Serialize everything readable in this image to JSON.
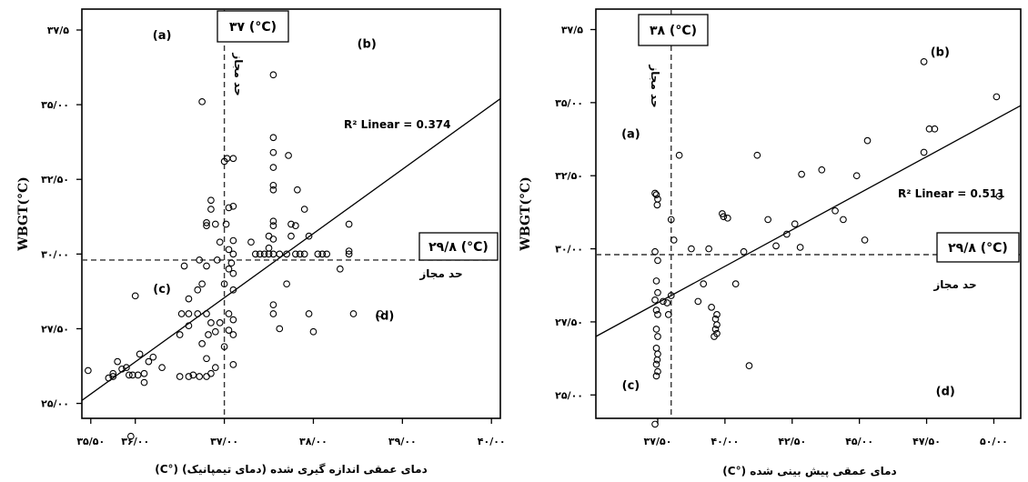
{
  "chart_data": [
    {
      "type": "scatter",
      "panel": "left",
      "xlabel": "دمای عمقی اندازه گیری شده (دمای تیمپانیک) (°C)",
      "ylabel": "WBGT(°C)",
      "xlim": [
        35.4,
        40.1
      ],
      "ylim": [
        24.5,
        38.2
      ],
      "x_ticks": [
        {
          "v": 35.5,
          "label": "۳۵/۵۰"
        },
        {
          "v": 36.0,
          "label": "۳۶/۰۰"
        },
        {
          "v": 37.0,
          "label": "۳۷/۰۰"
        },
        {
          "v": 38.0,
          "label": "۳۸/۰۰"
        },
        {
          "v": 39.0,
          "label": "۳۹/۰۰"
        },
        {
          "v": 40.0,
          "label": "۴۰/۰۰"
        }
      ],
      "y_ticks": [
        {
          "v": 25.0,
          "label": "۲۵/۰۰"
        },
        {
          "v": 27.5,
          "label": "۲۷/۵۰"
        },
        {
          "v": 30.0,
          "label": "۳۰/۰۰"
        },
        {
          "v": 32.5,
          "label": "۳۲/۵۰"
        },
        {
          "v": 35.0,
          "label": "۳۵/۰۰"
        },
        {
          "v": 37.5,
          "label": "۳۷/۵"
        }
      ],
      "vline": {
        "x": 37.0,
        "label": "۳۷ (°C)",
        "note": "حد مجاز"
      },
      "hline": {
        "y": 29.8,
        "label": "۲۹/۸ (°C)",
        "note": "حد مجاز"
      },
      "fit": {
        "label": "R² Linear = 0.374",
        "x0": 35.4,
        "y0": 25.1,
        "x1": 40.1,
        "y1": 35.2
      },
      "quadrants": [
        {
          "label": "(a)",
          "x": 36.3,
          "y": 37.2
        },
        {
          "label": "(b)",
          "x": 38.6,
          "y": 36.9
        },
        {
          "label": "(c)",
          "x": 36.3,
          "y": 28.7
        },
        {
          "label": "(d)",
          "x": 38.8,
          "y": 27.8
        }
      ],
      "points": [
        [
          35.47,
          26.1
        ],
        [
          35.7,
          25.85
        ],
        [
          35.75,
          25.9
        ],
        [
          35.85,
          26.15
        ],
        [
          35.75,
          26.0
        ],
        [
          35.8,
          26.4
        ],
        [
          35.9,
          26.2
        ],
        [
          35.93,
          25.95
        ],
        [
          35.97,
          25.95
        ],
        [
          36.03,
          25.95
        ],
        [
          36.1,
          26.0
        ],
        [
          36.1,
          25.7
        ],
        [
          36.05,
          26.65
        ],
        [
          36.15,
          26.4
        ],
        [
          36.2,
          26.55
        ],
        [
          36.3,
          26.2
        ],
        [
          35.95,
          23.9
        ],
        [
          36.0,
          28.6
        ],
        [
          36.5,
          25.9
        ],
        [
          36.6,
          25.9
        ],
        [
          36.65,
          25.95
        ],
        [
          36.72,
          25.9
        ],
        [
          36.8,
          25.9
        ],
        [
          36.85,
          26.0
        ],
        [
          36.8,
          26.5
        ],
        [
          36.9,
          26.2
        ],
        [
          36.75,
          27.0
        ],
        [
          36.5,
          27.3
        ],
        [
          36.6,
          27.6
        ],
        [
          36.52,
          28.0
        ],
        [
          36.6,
          28.0
        ],
        [
          36.7,
          28.0
        ],
        [
          36.8,
          28.0
        ],
        [
          36.85,
          27.7
        ],
        [
          36.9,
          27.4
        ],
        [
          36.82,
          27.3
        ],
        [
          36.95,
          27.7
        ],
        [
          36.6,
          28.5
        ],
        [
          36.7,
          28.8
        ],
        [
          36.75,
          29.0
        ],
        [
          36.8,
          29.6
        ],
        [
          36.92,
          29.8
        ],
        [
          36.72,
          29.8
        ],
        [
          36.55,
          29.6
        ],
        [
          36.8,
          30.95
        ],
        [
          36.8,
          31.05
        ],
        [
          36.85,
          31.5
        ],
        [
          36.85,
          31.8
        ],
        [
          36.95,
          30.4
        ],
        [
          36.9,
          31.0
        ],
        [
          36.75,
          35.1
        ],
        [
          37.0,
          33.1
        ],
        [
          37.03,
          33.2
        ],
        [
          37.1,
          33.2
        ],
        [
          37.05,
          31.55
        ],
        [
          37.1,
          31.6
        ],
        [
          37.02,
          31.0
        ],
        [
          37.1,
          30.45
        ],
        [
          37.05,
          30.15
        ],
        [
          37.1,
          30.0
        ],
        [
          37.08,
          29.7
        ],
        [
          37.1,
          29.35
        ],
        [
          37.0,
          29.0
        ],
        [
          37.1,
          28.8
        ],
        [
          37.05,
          28.0
        ],
        [
          37.1,
          27.8
        ],
        [
          37.05,
          27.45
        ],
        [
          37.1,
          27.3
        ],
        [
          37.0,
          26.9
        ],
        [
          37.1,
          26.3
        ],
        [
          37.05,
          29.5
        ],
        [
          37.3,
          30.4
        ],
        [
          37.35,
          30.0
        ],
        [
          37.4,
          30.0
        ],
        [
          37.45,
          30.0
        ],
        [
          37.5,
          30.0
        ],
        [
          37.55,
          30.0
        ],
        [
          37.62,
          30.0
        ],
        [
          37.55,
          30.5
        ],
        [
          37.55,
          30.95
        ],
        [
          37.55,
          31.1
        ],
        [
          37.5,
          30.6
        ],
        [
          37.5,
          30.2
        ],
        [
          37.55,
          32.15
        ],
        [
          37.55,
          32.3
        ],
        [
          37.55,
          32.9
        ],
        [
          37.55,
          33.4
        ],
        [
          37.55,
          33.9
        ],
        [
          37.55,
          36.0
        ],
        [
          37.55,
          28.3
        ],
        [
          37.55,
          28.0
        ],
        [
          37.62,
          27.5
        ],
        [
          37.7,
          29.0
        ],
        [
          37.7,
          30.0
        ],
        [
          37.8,
          30.0
        ],
        [
          37.85,
          30.0
        ],
        [
          37.75,
          30.6
        ],
        [
          37.8,
          30.95
        ],
        [
          37.75,
          31.0
        ],
        [
          37.72,
          33.3
        ],
        [
          37.82,
          32.15
        ],
        [
          37.9,
          30.0
        ],
        [
          37.95,
          30.6
        ],
        [
          37.9,
          31.5
        ],
        [
          37.95,
          28.0
        ],
        [
          38.0,
          27.4
        ],
        [
          38.05,
          30.0
        ],
        [
          38.1,
          30.0
        ],
        [
          38.15,
          30.0
        ],
        [
          38.3,
          29.5
        ],
        [
          38.4,
          31.0
        ],
        [
          38.4,
          30.1
        ],
        [
          38.45,
          28.0
        ],
        [
          38.4,
          30.0
        ],
        [
          38.75,
          28.0
        ]
      ]
    },
    {
      "type": "scatter",
      "panel": "right",
      "xlabel": "دمای عمقی پیش بینی شده (°C)",
      "ylabel": "WBGT(°C)",
      "xlim": [
        35.2,
        51.0
      ],
      "ylim": [
        24.2,
        38.2
      ],
      "x_ticks": [
        {
          "v": 37.5,
          "label": "۳۷/۵۰"
        },
        {
          "v": 40.0,
          "label": "۴۰/۰۰"
        },
        {
          "v": 42.5,
          "label": "۴۲/۵۰"
        },
        {
          "v": 45.0,
          "label": "۴۵/۰۰"
        },
        {
          "v": 47.5,
          "label": "۴۷/۵۰"
        },
        {
          "v": 50.0,
          "label": "۵۰/۰۰"
        }
      ],
      "y_ticks": [
        {
          "v": 25.0,
          "label": "۲۵/۰۰"
        },
        {
          "v": 27.5,
          "label": "۲۷/۵۰"
        },
        {
          "v": 30.0,
          "label": "۳۰/۰۰"
        },
        {
          "v": 32.5,
          "label": "۳۲/۵۰"
        },
        {
          "v": 35.0,
          "label": "۳۵/۰۰"
        },
        {
          "v": 37.5,
          "label": "۳۷/۵"
        }
      ],
      "vline": {
        "x": 38.0,
        "label": "۳۸ (°C)",
        "note": "حد مجاز"
      },
      "hline": {
        "y": 29.8,
        "label": "۲۹/۸ (°C)",
        "note": "حد مجاز"
      },
      "fit": {
        "label": "R² Linear = 0.511",
        "x0": 35.2,
        "y0": 27.0,
        "x1": 51.0,
        "y1": 34.9
      },
      "quadrants": [
        {
          "label": "(a)",
          "x": 36.5,
          "y": 33.8
        },
        {
          "label": "(b)",
          "x": 48.0,
          "y": 36.6
        },
        {
          "label": "(c)",
          "x": 36.5,
          "y": 25.2
        },
        {
          "label": "(d)",
          "x": 48.2,
          "y": 25.0
        }
      ],
      "points": [
        [
          37.4,
          31.9
        ],
        [
          37.45,
          31.85
        ],
        [
          37.5,
          31.7
        ],
        [
          37.48,
          31.5
        ],
        [
          37.4,
          29.9
        ],
        [
          37.5,
          29.6
        ],
        [
          37.45,
          28.9
        ],
        [
          37.5,
          28.5
        ],
        [
          37.4,
          28.25
        ],
        [
          37.45,
          27.9
        ],
        [
          37.5,
          27.75
        ],
        [
          37.45,
          27.25
        ],
        [
          37.5,
          27.0
        ],
        [
          37.45,
          26.6
        ],
        [
          37.5,
          26.4
        ],
        [
          37.48,
          26.2
        ],
        [
          37.45,
          26.05
        ],
        [
          37.5,
          25.8
        ],
        [
          37.45,
          25.65
        ],
        [
          37.4,
          24.0
        ],
        [
          37.7,
          28.2
        ],
        [
          37.85,
          28.15
        ],
        [
          37.9,
          27.75
        ],
        [
          38.0,
          28.4
        ],
        [
          38.1,
          30.3
        ],
        [
          38.0,
          31.0
        ],
        [
          38.3,
          33.2
        ],
        [
          38.75,
          30.0
        ],
        [
          39.0,
          28.2
        ],
        [
          39.2,
          28.8
        ],
        [
          39.4,
          30.0
        ],
        [
          39.5,
          28.0
        ],
        [
          39.6,
          27.0
        ],
        [
          39.7,
          27.75
        ],
        [
          39.65,
          27.6
        ],
        [
          39.7,
          27.4
        ],
        [
          39.65,
          27.25
        ],
        [
          39.7,
          27.1
        ],
        [
          39.9,
          31.2
        ],
        [
          39.95,
          31.1
        ],
        [
          40.1,
          31.05
        ],
        [
          40.4,
          28.8
        ],
        [
          40.7,
          29.9
        ],
        [
          40.9,
          26.0
        ],
        [
          41.2,
          33.2
        ],
        [
          41.6,
          31.0
        ],
        [
          41.9,
          30.1
        ],
        [
          42.3,
          30.5
        ],
        [
          42.6,
          30.85
        ],
        [
          42.8,
          30.05
        ],
        [
          42.85,
          32.55
        ],
        [
          43.6,
          32.7
        ],
        [
          44.1,
          31.3
        ],
        [
          44.4,
          31.0
        ],
        [
          44.9,
          32.5
        ],
        [
          45.2,
          30.3
        ],
        [
          45.3,
          33.7
        ],
        [
          47.4,
          36.4
        ],
        [
          47.4,
          33.3
        ],
        [
          47.6,
          34.1
        ],
        [
          47.8,
          34.1
        ],
        [
          50.1,
          35.2
        ],
        [
          50.2,
          31.8
        ]
      ]
    }
  ]
}
